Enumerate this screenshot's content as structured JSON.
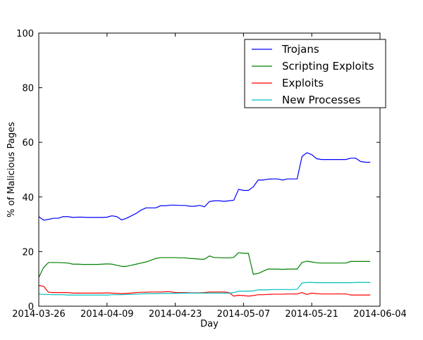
{
  "chart_data": {
    "type": "line",
    "title": "",
    "xlabel": "Day",
    "ylabel": "% of Malicious Pages",
    "x_ticks": [
      "2014-03-26",
      "2014-04-09",
      "2014-04-23",
      "2014-05-07",
      "2014-05-21",
      "2014-06-04"
    ],
    "y_ticks": [
      "0",
      "20",
      "40",
      "60",
      "80",
      "100"
    ],
    "xlim": [
      "2014-03-26",
      "2014-06-04"
    ],
    "ylim": [
      0,
      100
    ],
    "grid": false,
    "legend_position": "top-right",
    "x": [
      "2014-03-26",
      "2014-03-27",
      "2014-03-28",
      "2014-03-29",
      "2014-03-30",
      "2014-03-31",
      "2014-04-01",
      "2014-04-02",
      "2014-04-03",
      "2014-04-04",
      "2014-04-05",
      "2014-04-06",
      "2014-04-07",
      "2014-04-08",
      "2014-04-09",
      "2014-04-10",
      "2014-04-11",
      "2014-04-12",
      "2014-04-13",
      "2014-04-14",
      "2014-04-15",
      "2014-04-16",
      "2014-04-17",
      "2014-04-18",
      "2014-04-19",
      "2014-04-20",
      "2014-04-21",
      "2014-04-22",
      "2014-04-23",
      "2014-04-24",
      "2014-04-25",
      "2014-04-26",
      "2014-04-27",
      "2014-04-28",
      "2014-04-29",
      "2014-04-30",
      "2014-05-01",
      "2014-05-02",
      "2014-05-03",
      "2014-05-04",
      "2014-05-05",
      "2014-05-06",
      "2014-05-07",
      "2014-05-08",
      "2014-05-09",
      "2014-05-10",
      "2014-05-11",
      "2014-05-12",
      "2014-05-13",
      "2014-05-14",
      "2014-05-15",
      "2014-05-16",
      "2014-05-17",
      "2014-05-18",
      "2014-05-19",
      "2014-05-20",
      "2014-05-21",
      "2014-05-22",
      "2014-05-23",
      "2014-05-24",
      "2014-05-25",
      "2014-05-26",
      "2014-05-27",
      "2014-05-28",
      "2014-05-29",
      "2014-05-30",
      "2014-05-31",
      "2014-06-01",
      "2014-06-02"
    ],
    "series": [
      {
        "name": "Trojans",
        "color": "#0000ff",
        "values": [
          32.8,
          31.5,
          31.8,
          32.2,
          32.2,
          32.8,
          32.8,
          32.5,
          32.6,
          32.6,
          32.5,
          32.5,
          32.5,
          32.5,
          32.6,
          33.1,
          32.8,
          31.6,
          32.2,
          33.1,
          34.0,
          35.2,
          36.0,
          36.0,
          36.0,
          36.8,
          36.8,
          37.0,
          37.0,
          36.9,
          36.9,
          36.6,
          36.6,
          36.9,
          36.4,
          38.3,
          38.6,
          38.6,
          38.4,
          38.6,
          38.8,
          42.8,
          42.4,
          42.4,
          43.7,
          46.2,
          46.2,
          46.5,
          46.6,
          46.6,
          46.2,
          46.6,
          46.6,
          46.6,
          54.8,
          56.2,
          55.5,
          54.0,
          53.7,
          53.7,
          53.7,
          53.7,
          53.7,
          53.7,
          54.2,
          54.2,
          53.0,
          52.7,
          52.7
        ]
      },
      {
        "name": "Scripting Exploits",
        "color": "#008000",
        "values": [
          10.5,
          14.2,
          16.0,
          16.0,
          16.0,
          15.9,
          15.8,
          15.4,
          15.4,
          15.3,
          15.3,
          15.3,
          15.3,
          15.4,
          15.5,
          15.4,
          15.0,
          14.6,
          14.6,
          15.0,
          15.4,
          15.8,
          16.2,
          16.8,
          17.5,
          17.8,
          17.8,
          17.8,
          17.8,
          17.7,
          17.7,
          17.5,
          17.4,
          17.2,
          17.2,
          18.4,
          17.8,
          17.8,
          17.7,
          17.7,
          17.9,
          19.6,
          19.4,
          19.4,
          11.7,
          12.0,
          12.8,
          13.6,
          13.6,
          13.6,
          13.5,
          13.6,
          13.6,
          13.6,
          16.0,
          16.5,
          16.2,
          15.9,
          15.8,
          15.8,
          15.8,
          15.8,
          15.8,
          15.8,
          16.4,
          16.4,
          16.4,
          16.4,
          16.4
        ]
      },
      {
        "name": "Exploits",
        "color": "#ff0000",
        "values": [
          7.6,
          7.3,
          5.1,
          5.0,
          5.0,
          5.0,
          5.0,
          4.8,
          4.8,
          4.8,
          4.8,
          4.8,
          4.8,
          4.8,
          4.9,
          4.8,
          4.7,
          4.6,
          4.7,
          4.8,
          5.0,
          5.1,
          5.1,
          5.2,
          5.2,
          5.2,
          5.3,
          5.3,
          5.0,
          5.0,
          5.0,
          4.9,
          4.9,
          4.9,
          5.0,
          5.2,
          5.2,
          5.2,
          5.2,
          5.0,
          3.7,
          4.0,
          3.9,
          3.7,
          3.9,
          4.2,
          4.2,
          4.3,
          4.4,
          4.4,
          4.4,
          4.5,
          4.5,
          4.5,
          5.0,
          4.3,
          4.8,
          4.6,
          4.5,
          4.5,
          4.5,
          4.5,
          4.5,
          4.5,
          4.1,
          4.1,
          4.1,
          4.1,
          4.1
        ]
      },
      {
        "name": "New Processes",
        "color": "#00bfbf",
        "values": [
          4.5,
          4.3,
          4.3,
          4.2,
          4.2,
          4.2,
          4.1,
          4.1,
          4.1,
          4.1,
          4.1,
          4.1,
          4.1,
          4.1,
          4.1,
          4.2,
          4.2,
          4.2,
          4.3,
          4.3,
          4.4,
          4.5,
          4.6,
          4.6,
          4.6,
          4.7,
          4.7,
          4.7,
          4.7,
          4.8,
          4.8,
          4.8,
          4.8,
          4.8,
          4.8,
          4.8,
          4.8,
          4.8,
          4.8,
          4.8,
          5.0,
          5.5,
          5.5,
          5.5,
          5.6,
          6.0,
          6.0,
          6.0,
          6.1,
          6.1,
          6.1,
          6.1,
          6.1,
          6.2,
          8.5,
          8.7,
          8.7,
          8.6,
          8.6,
          8.6,
          8.6,
          8.6,
          8.6,
          8.6,
          8.6,
          8.7,
          8.7,
          8.7,
          8.7
        ]
      }
    ]
  }
}
